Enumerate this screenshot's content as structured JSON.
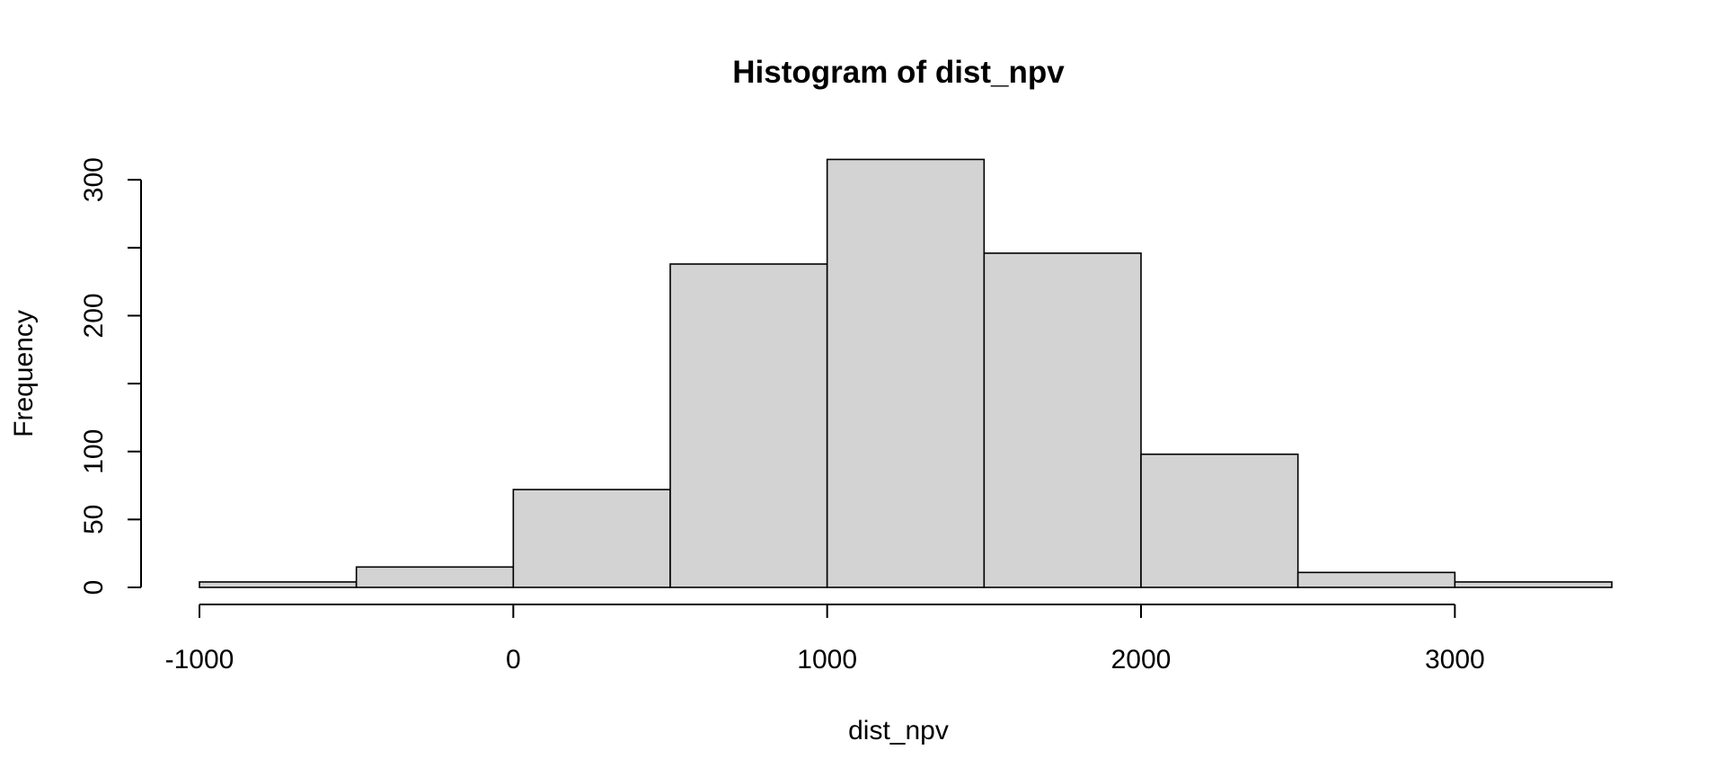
{
  "chart_data": {
    "type": "bar",
    "title": "Histogram of dist_npv",
    "xlabel": "dist_npv",
    "ylabel": "Frequency",
    "bins": [
      {
        "from": -1000,
        "to": -500,
        "count": 4
      },
      {
        "from": -500,
        "to": 0,
        "count": 15
      },
      {
        "from": 0,
        "to": 500,
        "count": 72
      },
      {
        "from": 500,
        "to": 1000,
        "count": 238
      },
      {
        "from": 1000,
        "to": 1500,
        "count": 315
      },
      {
        "from": 1500,
        "to": 2000,
        "count": 246
      },
      {
        "from": 2000,
        "to": 2500,
        "count": 98
      },
      {
        "from": 2500,
        "to": 3000,
        "count": 11
      },
      {
        "from": 3000,
        "to": 3500,
        "count": 4
      }
    ],
    "x_ticks": [
      -1000,
      0,
      1000,
      2000,
      3000
    ],
    "x_tick_labels": [
      "-1000",
      "0",
      "1000",
      "2000",
      "3000"
    ],
    "y_ticks": [
      0,
      50,
      100,
      150,
      200,
      250,
      300
    ],
    "y_tick_labels": [
      "0",
      "50",
      "100",
      "",
      "200",
      "",
      "300"
    ],
    "xlim": [
      -1000,
      3500
    ],
    "ylim": [
      0,
      315
    ],
    "bar_fill": "#d3d3d3",
    "bar_stroke": "#000000",
    "grid": false,
    "legend": "none"
  }
}
